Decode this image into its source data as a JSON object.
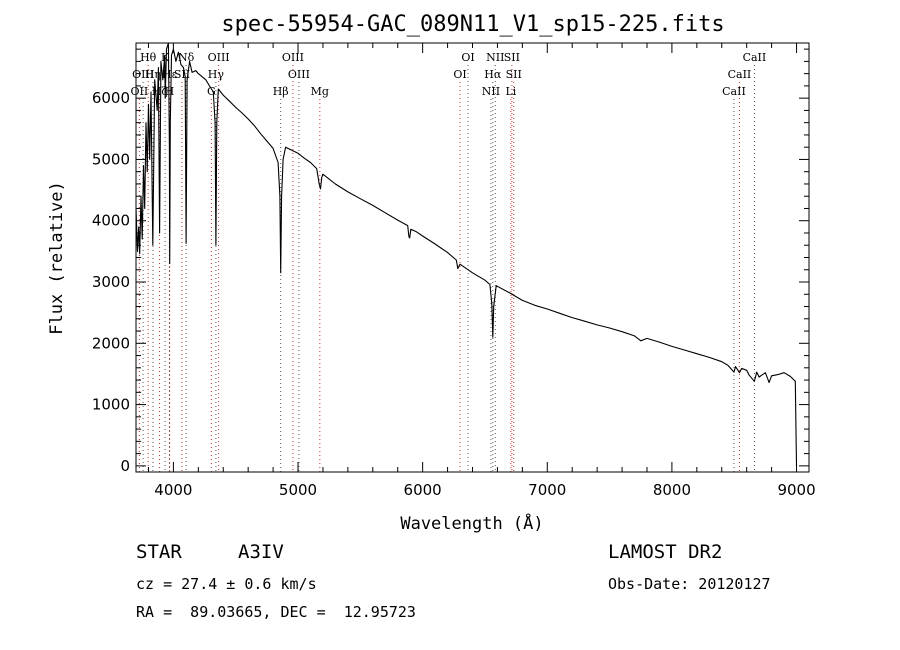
{
  "chart_data": {
    "type": "line",
    "title": "spec-55954-GAC_089N11_V1_sp15-225.fits",
    "xlabel": "Wavelength (Å)",
    "ylabel": "Flux (relative)",
    "xlim": [
      3700,
      9100
    ],
    "ylim": [
      -100,
      6900
    ],
    "xticks": [
      4000,
      5000,
      6000,
      7000,
      8000,
      9000
    ],
    "yticks": [
      0,
      1000,
      2000,
      3000,
      4000,
      5000,
      6000
    ],
    "grid": false,
    "series": [
      {
        "color": "#000000",
        "points": [
          [
            3700,
            4200
          ],
          [
            3712,
            3500
          ],
          [
            3722,
            3900
          ],
          [
            3730,
            3460
          ],
          [
            3740,
            4400
          ],
          [
            3750,
            3700
          ],
          [
            3760,
            4900
          ],
          [
            3770,
            4200
          ],
          [
            3780,
            5600
          ],
          [
            3790,
            4800
          ],
          [
            3800,
            5900
          ],
          [
            3810,
            5000
          ],
          [
            3820,
            6100
          ],
          [
            3835,
            3600
          ],
          [
            3850,
            6300
          ],
          [
            3870,
            5800
          ],
          [
            3880,
            6500
          ],
          [
            3889,
            3800
          ],
          [
            3900,
            6600
          ],
          [
            3915,
            6300
          ],
          [
            3930,
            6700
          ],
          [
            3934,
            6000
          ],
          [
            3945,
            6800
          ],
          [
            3960,
            6900
          ],
          [
            3968,
            5200
          ],
          [
            3970,
            3300
          ],
          [
            3975,
            5600
          ],
          [
            3985,
            6700
          ],
          [
            4000,
            6800
          ],
          [
            4020,
            6600
          ],
          [
            4040,
            6750
          ],
          [
            4060,
            6550
          ],
          [
            4080,
            6500
          ],
          [
            4095,
            6350
          ],
          [
            4102,
            3630
          ],
          [
            4110,
            6300
          ],
          [
            4130,
            6600
          ],
          [
            4150,
            6420
          ],
          [
            4180,
            6450
          ],
          [
            4200,
            6400
          ],
          [
            4230,
            6350
          ],
          [
            4260,
            6300
          ],
          [
            4290,
            6200
          ],
          [
            4320,
            6100
          ],
          [
            4335,
            5600
          ],
          [
            4341,
            3600
          ],
          [
            4348,
            5600
          ],
          [
            4360,
            6150
          ],
          [
            4400,
            6050
          ],
          [
            4450,
            5950
          ],
          [
            4500,
            5850
          ],
          [
            4550,
            5760
          ],
          [
            4600,
            5660
          ],
          [
            4650,
            5550
          ],
          [
            4700,
            5420
          ],
          [
            4750,
            5300
          ],
          [
            4800,
            5180
          ],
          [
            4840,
            4950
          ],
          [
            4855,
            4400
          ],
          [
            4861,
            3150
          ],
          [
            4868,
            4400
          ],
          [
            4880,
            5000
          ],
          [
            4900,
            5200
          ],
          [
            4950,
            5150
          ],
          [
            5000,
            5100
          ],
          [
            5050,
            5020
          ],
          [
            5100,
            4950
          ],
          [
            5150,
            4850
          ],
          [
            5170,
            4600
          ],
          [
            5180,
            4520
          ],
          [
            5190,
            4700
          ],
          [
            5200,
            4760
          ],
          [
            5300,
            4600
          ],
          [
            5400,
            4470
          ],
          [
            5500,
            4360
          ],
          [
            5600,
            4250
          ],
          [
            5700,
            4130
          ],
          [
            5800,
            4010
          ],
          [
            5880,
            3920
          ],
          [
            5890,
            3740
          ],
          [
            5896,
            3720
          ],
          [
            5905,
            3860
          ],
          [
            5950,
            3820
          ],
          [
            6000,
            3750
          ],
          [
            6100,
            3620
          ],
          [
            6200,
            3480
          ],
          [
            6270,
            3360
          ],
          [
            6282,
            3220
          ],
          [
            6300,
            3290
          ],
          [
            6400,
            3150
          ],
          [
            6500,
            3030
          ],
          [
            6540,
            2960
          ],
          [
            6555,
            2650
          ],
          [
            6563,
            2100
          ],
          [
            6570,
            2600
          ],
          [
            6590,
            2940
          ],
          [
            6700,
            2820
          ],
          [
            6800,
            2700
          ],
          [
            6900,
            2620
          ],
          [
            7000,
            2560
          ],
          [
            7100,
            2490
          ],
          [
            7200,
            2420
          ],
          [
            7300,
            2360
          ],
          [
            7400,
            2300
          ],
          [
            7500,
            2250
          ],
          [
            7600,
            2190
          ],
          [
            7700,
            2120
          ],
          [
            7750,
            2040
          ],
          [
            7800,
            2080
          ],
          [
            7900,
            2020
          ],
          [
            8000,
            1950
          ],
          [
            8100,
            1890
          ],
          [
            8200,
            1830
          ],
          [
            8300,
            1770
          ],
          [
            8400,
            1700
          ],
          [
            8450,
            1640
          ],
          [
            8498,
            1530
          ],
          [
            8510,
            1620
          ],
          [
            8542,
            1520
          ],
          [
            8560,
            1590
          ],
          [
            8600,
            1560
          ],
          [
            8620,
            1480
          ],
          [
            8662,
            1380
          ],
          [
            8680,
            1530
          ],
          [
            8700,
            1450
          ],
          [
            8750,
            1520
          ],
          [
            8780,
            1360
          ],
          [
            8800,
            1470
          ],
          [
            8850,
            1490
          ],
          [
            8900,
            1520
          ],
          [
            8950,
            1460
          ],
          [
            8990,
            1380
          ],
          [
            9000,
            0
          ]
        ]
      }
    ],
    "line_markers": [
      {
        "label": "Hθ",
        "wl": 3798,
        "row": 0
      },
      {
        "label": "OIII",
        "wl": 3757,
        "row": 1
      },
      {
        "label": "OII",
        "wl": 3727,
        "row": 2
      },
      {
        "label": "Hη",
        "wl": 3836,
        "row": 1
      },
      {
        "label": "Hζ",
        "wl": 3889,
        "row": 2
      },
      {
        "label": "K",
        "wl": 3934,
        "row": 0
      },
      {
        "label": "Hε",
        "wl": 3970,
        "row": 1
      },
      {
        "label": "H",
        "wl": 3968,
        "row": 2
      },
      {
        "label": "SII",
        "wl": 4069,
        "row": 1
      },
      {
        "label": "Nδ",
        "wl": 4102,
        "row": 0
      },
      {
        "label": "OIII",
        "wl": 4363,
        "row": 0
      },
      {
        "label": "Hγ",
        "wl": 4341,
        "row": 1
      },
      {
        "label": "G",
        "wl": 4305,
        "row": 2
      },
      {
        "label": "Hβ",
        "wl": 4861,
        "row": 2
      },
      {
        "label": "OIII",
        "wl": 4959,
        "row": 0
      },
      {
        "label": "OIII",
        "wl": 5007,
        "row": 1
      },
      {
        "label": "Mg",
        "wl": 5175,
        "row": 2
      },
      {
        "label": "OI",
        "wl": 6364,
        "row": 0
      },
      {
        "label": "OI",
        "wl": 6300,
        "row": 1
      },
      {
        "label": "NII",
        "wl": 6583,
        "row": 0
      },
      {
        "label": "SII",
        "wl": 6716,
        "row": 0
      },
      {
        "label": "Hα",
        "wl": 6563,
        "row": 1
      },
      {
        "label": "SII",
        "wl": 6731,
        "row": 1
      },
      {
        "label": "NII",
        "wl": 6548,
        "row": 2
      },
      {
        "label": "Li",
        "wl": 6708,
        "row": 2
      },
      {
        "label": "CaII",
        "wl": 8662,
        "row": 0
      },
      {
        "label": "CaII",
        "wl": 8542,
        "row": 1
      },
      {
        "label": "CaII",
        "wl": 8498,
        "row": 2
      }
    ],
    "marker_colors": [
      "#cc3333",
      "#555555"
    ]
  },
  "info": {
    "object_class": "STAR",
    "subclass": "A3IV",
    "survey": "LAMOST DR2",
    "redshift_line": "cz = 27.4 ± 0.6 km/s",
    "obs_date_line": "Obs-Date: 20120127",
    "coords_line": "RA =  89.03665, DEC =  12.95723"
  }
}
